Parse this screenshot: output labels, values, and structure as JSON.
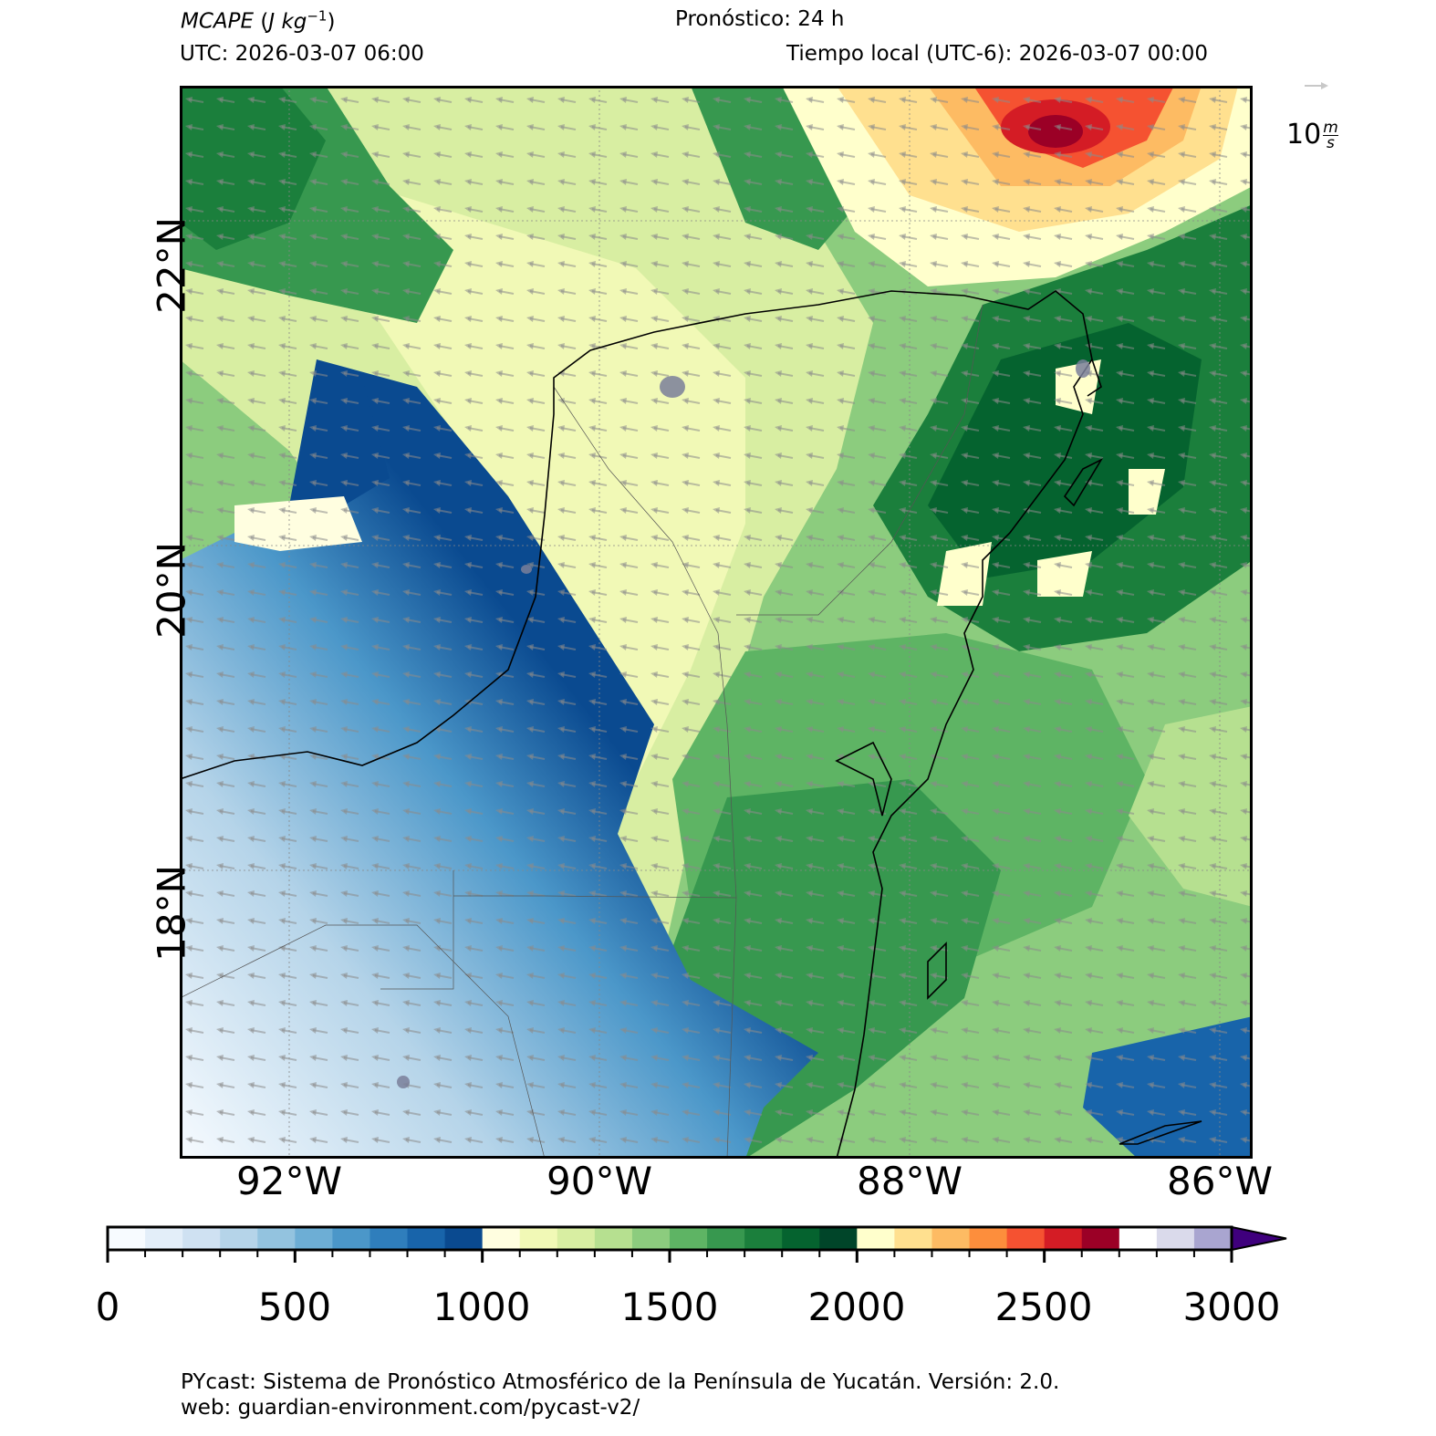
{
  "header": {
    "variable": "MCAPE",
    "units_base": "J kg",
    "units_exp": "−1",
    "forecast": "Pronóstico: 24 h",
    "utc": "UTC:  2026-03-07 06:00",
    "local": "Tiempo local (UTC-6): 2026-03-07 00:00"
  },
  "map": {
    "x_ticks": [
      "92°W",
      "90°W",
      "88°W",
      "86°W"
    ],
    "y_ticks": [
      "22°N",
      "20°N",
      "18°N"
    ],
    "wind_key": {
      "value": "10",
      "unit_num": "m",
      "unit_den": "s"
    }
  },
  "colorbar": {
    "ticks": [
      "0",
      "500",
      "1000",
      "1500",
      "2000",
      "2500",
      "3000"
    ],
    "min": 0,
    "max": 3000,
    "step": 100,
    "extend": "max",
    "colors": [
      "#f7fbff",
      "#e3eef9",
      "#cfe1f2",
      "#b5d4e9",
      "#93c3df",
      "#6daed5",
      "#4b97c9",
      "#2f7ebc",
      "#1864aa",
      "#0a4a90",
      "#fffee0",
      "#f1f9b6",
      "#d8eea2",
      "#b6e090",
      "#8ccc7e",
      "#5eb464",
      "#37984f",
      "#1b7f3c",
      "#05632f",
      "#004529",
      "#ffffcc",
      "#ffe08f",
      "#fdbb63",
      "#fd8e3c",
      "#f55231",
      "#d41c25",
      "#9b0026",
      "#ffffff",
      "#dadaeb",
      "#a9a5d0",
      "#7d69ae",
      "#54278f",
      "#3f007d"
    ]
  },
  "footer": {
    "line1": "PYcast: Sistema de Pronóstico Atmosférico de la Península de Yucatán. Versión: 2.0.",
    "line2": "web: guardian-environment.com/pycast-v2/"
  }
}
